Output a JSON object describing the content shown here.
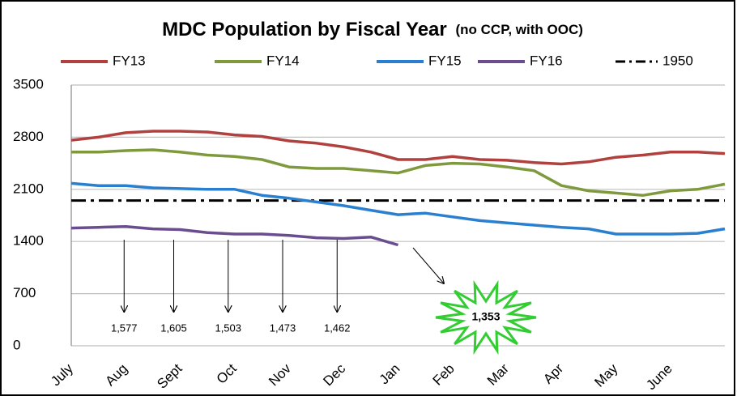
{
  "chart_data": {
    "type": "line",
    "title": "MDC Population by Fiscal Year",
    "subtitle": "(no CCP, with OOC)",
    "categories": [
      "July",
      null,
      "Aug",
      null,
      "Sept",
      null,
      "Oct",
      null,
      "Nov",
      null,
      "Dec",
      null,
      "Jan",
      null,
      "Feb",
      null,
      "Mar",
      null,
      "Apr",
      null,
      "May",
      null,
      "June",
      null,
      null
    ],
    "series": [
      {
        "name": "FY13",
        "color": "#b0413e",
        "values": [
          2760,
          2800,
          2860,
          2880,
          2880,
          2870,
          2830,
          2810,
          2750,
          2720,
          2670,
          2600,
          2500,
          2500,
          2540,
          2500,
          2490,
          2460,
          2440,
          2470,
          2530,
          2560,
          2600,
          2600,
          2580
        ]
      },
      {
        "name": "FY14",
        "color": "#7f9a3d",
        "values": [
          2600,
          2600,
          2620,
          2630,
          2600,
          2560,
          2540,
          2500,
          2400,
          2380,
          2380,
          2350,
          2320,
          2420,
          2450,
          2440,
          2400,
          2350,
          2150,
          2080,
          2050,
          2020,
          2080,
          2100,
          2170
        ]
      },
      {
        "name": "FY15",
        "color": "#2a7fcf",
        "values": [
          2180,
          2150,
          2150,
          2120,
          2110,
          2100,
          2100,
          2020,
          1980,
          1930,
          1880,
          1820,
          1760,
          1780,
          1730,
          1680,
          1650,
          1620,
          1590,
          1570,
          1500,
          1500,
          1500,
          1510,
          1570
        ]
      },
      {
        "name": "FY16",
        "color": "#6a4d8f",
        "values": [
          1580,
          1590,
          1600,
          1570,
          1560,
          1520,
          1500,
          1500,
          1480,
          1450,
          1440,
          1460,
          1353,
          null,
          null,
          null,
          null,
          null,
          null,
          null,
          null,
          null,
          null,
          null,
          null
        ]
      }
    ],
    "reference": {
      "name": "1950",
      "value": 1950,
      "color": "#000000"
    },
    "ylim": [
      0,
      3500
    ],
    "yticks": [
      0,
      700,
      1400,
      2100,
      2800,
      3500
    ],
    "grid": true,
    "annotations": [
      {
        "label": "1,577",
        "value": 1577
      },
      {
        "label": "1,605",
        "value": 1605
      },
      {
        "label": "1,503",
        "value": 1503
      },
      {
        "label": "1,473",
        "value": 1473
      },
      {
        "label": "1,462",
        "value": 1462
      }
    ],
    "callout": {
      "label": "1,353",
      "value": 1353
    }
  }
}
